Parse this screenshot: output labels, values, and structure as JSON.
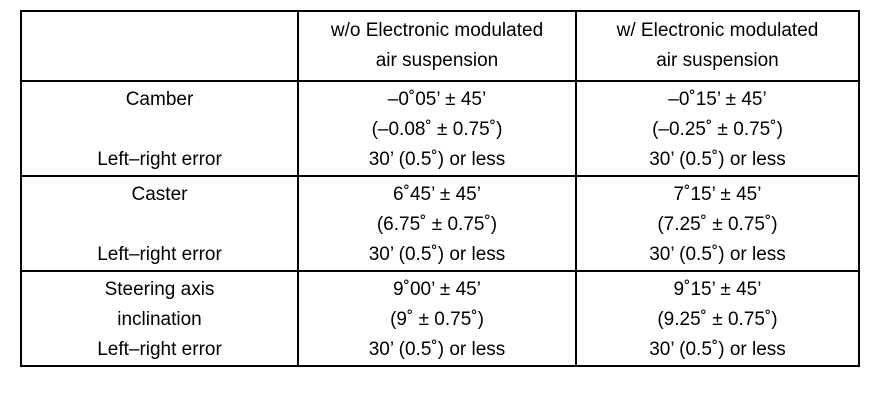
{
  "table": {
    "header": [
      [
        "w/o Electronic modulated",
        "air suspension"
      ],
      [
        "w/ Electronic modulated",
        "air suspension"
      ]
    ],
    "rows": [
      {
        "item": [
          "Camber"
        ],
        "sub": "Left–right error",
        "cells": [
          [
            "–0˚05’ ± 45’",
            "(–0.08˚ ± 0.75˚)",
            "30’ (0.5˚) or less"
          ],
          [
            "–0˚15’ ± 45’",
            "(–0.25˚ ± 0.75˚)",
            "30’ (0.5˚) or less"
          ]
        ]
      },
      {
        "item": [
          "Caster"
        ],
        "sub": "Left–right error",
        "cells": [
          [
            "6˚45’ ± 45’",
            "(6.75˚ ± 0.75˚)",
            "30’ (0.5˚) or less"
          ],
          [
            "7˚15’ ± 45’",
            "(7.25˚ ± 0.75˚)",
            "30’ (0.5˚) or less"
          ]
        ]
      },
      {
        "item": [
          "Steering axis",
          "inclination"
        ],
        "sub": "Left–right error",
        "cells": [
          [
            "9˚00’ ± 45’",
            "(9˚ ± 0.75˚)",
            "30’ (0.5˚) or less"
          ],
          [
            "9˚15’ ± 45’",
            "(9.25˚ ± 0.75˚)",
            "30’ (0.5˚) or less"
          ]
        ]
      }
    ]
  }
}
